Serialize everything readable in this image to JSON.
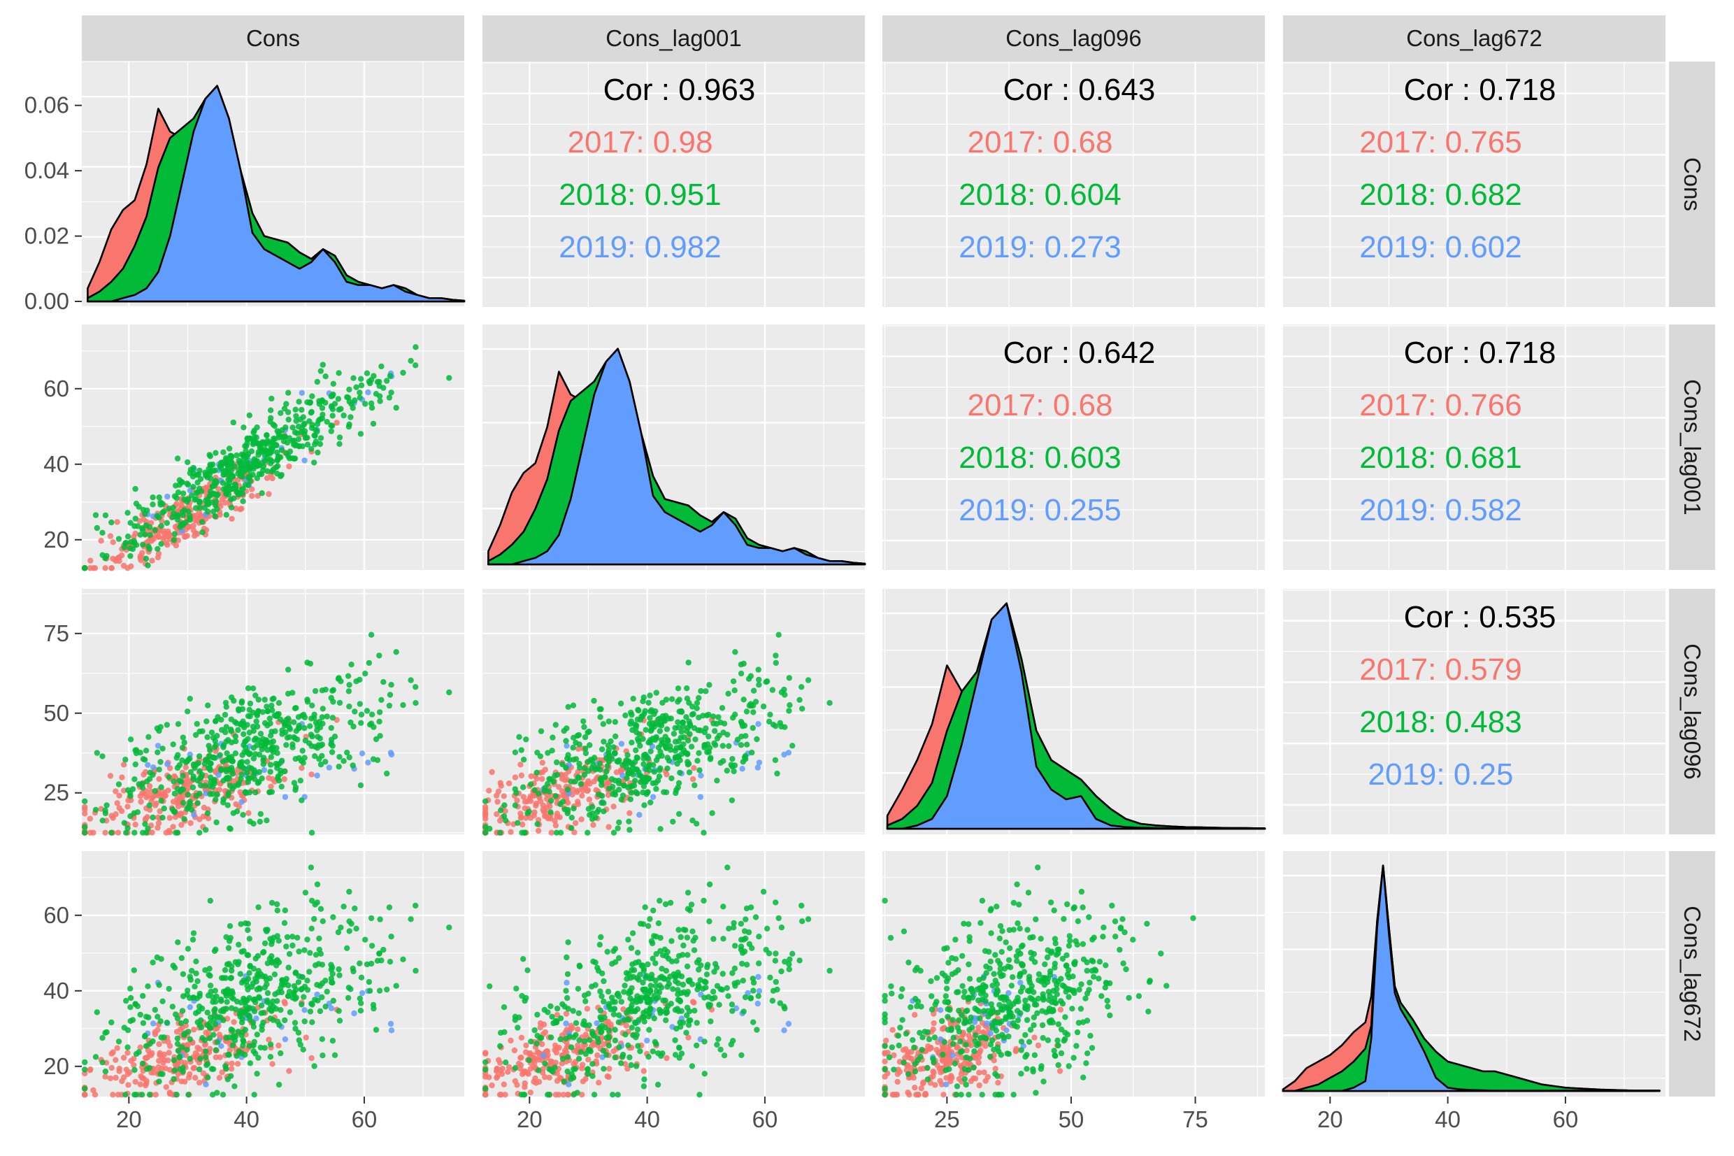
{
  "variables": [
    "Cons",
    "Cons_lag001",
    "Cons_lag096",
    "Cons_lag672"
  ],
  "groups": [
    {
      "name": "2017",
      "color": "#F8766D"
    },
    {
      "name": "2018",
      "color": "#00BA38"
    },
    {
      "name": "2019",
      "color": "#619CFF"
    }
  ],
  "colors": {
    "panel_bg": "#EBEBEB",
    "strip_bg": "#D9D9D9",
    "grid": "#FFFFFF",
    "text": "#000000",
    "tick_text": "#4D4D4D"
  },
  "chart_data": {
    "type": "scatter",
    "title": "",
    "subtitle": "",
    "layout": "pairs matrix (4x4): lower = scatter, diagonal = density by year, upper = correlation",
    "x_ranges": {
      "Cons": [
        12,
        77
      ],
      "Cons_lag001": [
        12,
        77
      ],
      "Cons_lag096": [
        12,
        89
      ],
      "Cons_lag672": [
        12,
        77
      ]
    },
    "y_ranges": {
      "Cons": [
        12,
        77
      ],
      "Cons_lag001": [
        12,
        77
      ],
      "Cons_lag096": [
        12,
        89
      ],
      "Cons_lag672": [
        12,
        77
      ]
    },
    "x_ticks": {
      "Cons": [
        20,
        40,
        60
      ],
      "Cons_lag001": [
        20,
        40,
        60
      ],
      "Cons_lag096": [
        25,
        50,
        75
      ],
      "Cons_lag672": [
        20,
        40,
        60
      ]
    },
    "y_ticks": {
      "Cons": [
        0.0,
        0.02,
        0.04,
        0.06
      ],
      "Cons_lag001": [
        20,
        40,
        60
      ],
      "Cons_lag096": [
        25,
        50,
        75
      ],
      "Cons_lag672": [
        20,
        40,
        60
      ]
    },
    "y_tick_labels": {
      "Cons": [
        "0.00",
        "0.02",
        "0.04",
        "0.06"
      ],
      "Cons_lag001": [
        "20",
        "40",
        "60"
      ],
      "Cons_lag096": [
        "25",
        "50",
        "75"
      ],
      "Cons_lag672": [
        "20",
        "40",
        "60"
      ]
    },
    "density_ylim": [
      0,
      0.07
    ],
    "correlations": [
      {
        "row": 0,
        "col": 1,
        "overall": "Cor : 0.963",
        "by_group": [
          "2017: 0.98",
          "2018: 0.951",
          "2019: 0.982"
        ]
      },
      {
        "row": 0,
        "col": 2,
        "overall": "Cor : 0.643",
        "by_group": [
          "2017: 0.68",
          "2018: 0.604",
          "2019: 0.273"
        ]
      },
      {
        "row": 0,
        "col": 3,
        "overall": "Cor : 0.718",
        "by_group": [
          "2017: 0.765",
          "2018: 0.682",
          "2019: 0.602"
        ]
      },
      {
        "row": 1,
        "col": 2,
        "overall": "Cor : 0.642",
        "by_group": [
          "2017: 0.68",
          "2018: 0.603",
          "2019: 0.255"
        ]
      },
      {
        "row": 1,
        "col": 3,
        "overall": "Cor : 0.718",
        "by_group": [
          "2017: 0.766",
          "2018: 0.681",
          "2019: 0.582"
        ]
      },
      {
        "row": 2,
        "col": 3,
        "overall": "Cor : 0.535",
        "by_group": [
          "2017: 0.579",
          "2018: 0.483",
          "2019: 0.25"
        ]
      }
    ],
    "densities": {
      "Cons": {
        "x": [
          13,
          15,
          17,
          19,
          21,
          23,
          25,
          27,
          29,
          31,
          33,
          35,
          37,
          39,
          41,
          43,
          45,
          47,
          49,
          51,
          53,
          55,
          57,
          59,
          61,
          63,
          65,
          67,
          69,
          71,
          73,
          75,
          77
        ],
        "cumulative": {
          "2017": [
            0.004,
            0.012,
            0.022,
            0.028,
            0.031,
            0.042,
            0.059,
            0.052,
            0.05,
            0.056,
            0.062,
            0.066,
            0.056,
            0.04,
            0.027,
            0.02,
            0.019,
            0.018,
            0.015,
            0.013,
            0.016,
            0.014,
            0.008,
            0.006,
            0.005,
            0.004,
            0.005,
            0.004,
            0.002,
            0.001,
            0.001,
            0.0005,
            0.0002
          ],
          "2018": [
            0.001,
            0.003,
            0.006,
            0.01,
            0.017,
            0.026,
            0.041,
            0.05,
            0.053,
            0.056,
            0.062,
            0.066,
            0.056,
            0.04,
            0.027,
            0.02,
            0.019,
            0.018,
            0.015,
            0.013,
            0.016,
            0.014,
            0.008,
            0.006,
            0.005,
            0.004,
            0.005,
            0.004,
            0.002,
            0.001,
            0.001,
            0.0005,
            0.0002
          ],
          "2019": [
            0.0,
            0.0,
            0.0,
            0.001,
            0.002,
            0.004,
            0.009,
            0.02,
            0.036,
            0.052,
            0.062,
            0.066,
            0.056,
            0.04,
            0.021,
            0.016,
            0.014,
            0.012,
            0.01,
            0.012,
            0.016,
            0.012,
            0.006,
            0.005,
            0.005,
            0.004,
            0.005,
            0.003,
            0.002,
            0.001,
            0.001,
            0.0005,
            0.0002
          ]
        }
      },
      "Cons_lag001": {
        "x": [
          13,
          15,
          17,
          19,
          21,
          23,
          25,
          27,
          29,
          31,
          33,
          35,
          37,
          39,
          41,
          43,
          45,
          47,
          49,
          51,
          53,
          55,
          57,
          59,
          61,
          63,
          65,
          67,
          69,
          71,
          73,
          75,
          77
        ],
        "cumulative": {
          "2017": [
            0.004,
            0.012,
            0.022,
            0.028,
            0.031,
            0.042,
            0.059,
            0.052,
            0.05,
            0.056,
            0.062,
            0.066,
            0.056,
            0.04,
            0.027,
            0.02,
            0.019,
            0.018,
            0.015,
            0.013,
            0.016,
            0.014,
            0.008,
            0.006,
            0.005,
            0.004,
            0.005,
            0.004,
            0.002,
            0.001,
            0.001,
            0.0005,
            0.0002
          ],
          "2018": [
            0.001,
            0.003,
            0.006,
            0.01,
            0.017,
            0.026,
            0.041,
            0.05,
            0.053,
            0.056,
            0.062,
            0.066,
            0.056,
            0.04,
            0.027,
            0.02,
            0.019,
            0.018,
            0.015,
            0.013,
            0.016,
            0.014,
            0.008,
            0.006,
            0.005,
            0.004,
            0.005,
            0.004,
            0.002,
            0.001,
            0.001,
            0.0005,
            0.0002
          ],
          "2019": [
            0.0,
            0.0,
            0.0,
            0.001,
            0.002,
            0.004,
            0.009,
            0.02,
            0.036,
            0.052,
            0.062,
            0.066,
            0.056,
            0.04,
            0.021,
            0.016,
            0.014,
            0.012,
            0.01,
            0.012,
            0.016,
            0.012,
            0.006,
            0.005,
            0.005,
            0.004,
            0.005,
            0.003,
            0.002,
            0.001,
            0.001,
            0.0005,
            0.0002
          ]
        }
      },
      "Cons_lag096": {
        "x": [
          13,
          16,
          19,
          22,
          25,
          28,
          31,
          34,
          37,
          40,
          43,
          46,
          49,
          52,
          55,
          58,
          61,
          64,
          67,
          70,
          73,
          76,
          79,
          82,
          85,
          89
        ],
        "cumulative": {
          "2017": [
            0.004,
            0.012,
            0.021,
            0.032,
            0.05,
            0.042,
            0.048,
            0.064,
            0.069,
            0.052,
            0.03,
            0.021,
            0.018,
            0.015,
            0.01,
            0.006,
            0.003,
            0.0015,
            0.001,
            0.0007,
            0.0005,
            0.0004,
            0.0003,
            0.0002,
            0.0002,
            0.0001
          ],
          "2018": [
            0.001,
            0.003,
            0.007,
            0.014,
            0.03,
            0.042,
            0.048,
            0.064,
            0.069,
            0.052,
            0.03,
            0.021,
            0.018,
            0.015,
            0.01,
            0.006,
            0.003,
            0.0015,
            0.001,
            0.0007,
            0.0005,
            0.0004,
            0.0003,
            0.0002,
            0.0002,
            0.0001
          ],
          "2019": [
            0.0,
            0.0,
            0.001,
            0.003,
            0.01,
            0.026,
            0.045,
            0.064,
            0.069,
            0.048,
            0.019,
            0.012,
            0.009,
            0.01,
            0.003,
            0.001,
            0.0005,
            0.0003,
            0.0002,
            0.0001,
            0.0001,
            0.0001,
            0.0001,
            0.0001,
            0.0001,
            0.0001
          ]
        }
      },
      "Cons_lag672": {
        "x": [
          12,
          14,
          16,
          18,
          20,
          22,
          24,
          26,
          27,
          28,
          29,
          30,
          31,
          32,
          34,
          36,
          38,
          40,
          42,
          44,
          46,
          48,
          50,
          52,
          54,
          56,
          58,
          60,
          62,
          64,
          66,
          68,
          70,
          72,
          74,
          76
        ],
        "cumulative": {
          "2017": [
            0.0005,
            0.003,
            0.007,
            0.009,
            0.011,
            0.014,
            0.018,
            0.021,
            0.029,
            0.052,
            0.069,
            0.05,
            0.032,
            0.027,
            0.022,
            0.016,
            0.012,
            0.009,
            0.008,
            0.007,
            0.006,
            0.006,
            0.005,
            0.004,
            0.003,
            0.002,
            0.0015,
            0.001,
            0.0008,
            0.0006,
            0.0004,
            0.0003,
            0.0002,
            0.0001,
            0.0001,
            0.0001
          ],
          "2018": [
            0.0,
            0.0,
            0.001,
            0.002,
            0.004,
            0.006,
            0.009,
            0.013,
            0.02,
            0.052,
            0.069,
            0.05,
            0.032,
            0.027,
            0.022,
            0.016,
            0.012,
            0.009,
            0.008,
            0.007,
            0.006,
            0.006,
            0.005,
            0.004,
            0.003,
            0.002,
            0.0015,
            0.001,
            0.0008,
            0.0006,
            0.0004,
            0.0003,
            0.0002,
            0.0001,
            0.0001,
            0.0001
          ],
          "2019": [
            0.0,
            0.0,
            0.0,
            0.0,
            0.0,
            0.0,
            0.001,
            0.003,
            0.016,
            0.05,
            0.069,
            0.048,
            0.03,
            0.025,
            0.019,
            0.012,
            0.004,
            0.001,
            0.0005,
            0.0003,
            0.0002,
            0.0001,
            0.0001,
            0.0001,
            0.0001,
            0.0001,
            0.0001,
            0.0001,
            0.0001,
            0.0001,
            0.0001,
            0.0001,
            0.0001,
            0.0001,
            0.0001,
            0.0001
          ]
        }
      }
    },
    "scatter_groups": [
      {
        "name": "2017",
        "color": "#F8766D",
        "n": 260,
        "mean": [
          28,
          24,
          24,
          22
        ],
        "sd": [
          9,
          9,
          8,
          7
        ],
        "corr": 0.7
      },
      {
        "name": "2018",
        "color": "#00BA38",
        "n": 520,
        "mean": [
          40,
          40,
          38,
          38
        ],
        "sd": [
          12,
          12,
          12,
          12
        ],
        "corr": 0.62
      },
      {
        "name": "2019",
        "color": "#619CFF",
        "n": 30,
        "mean": [
          45,
          45,
          34,
          32
        ],
        "sd": [
          12,
          12,
          6,
          5
        ],
        "corr": 0.35
      }
    ]
  }
}
